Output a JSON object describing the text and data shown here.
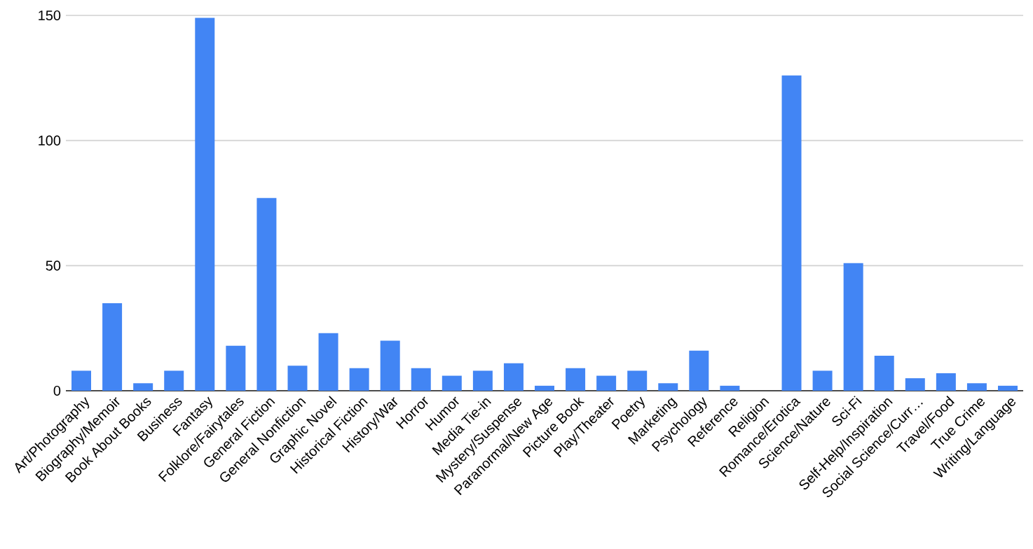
{
  "chart_data": {
    "type": "bar",
    "categories": [
      "Art/Photography",
      "Biography/Memoir",
      "Book About Books",
      "Business",
      "Fantasy",
      "Folklore/Fairytales",
      "General Fiction",
      "General Nonfiction",
      "Graphic Novel",
      "Historical Fiction",
      "History/War",
      "Horror",
      "Humor",
      "Media Tie-in",
      "Mystery/Suspense",
      "Paranormal/New Age",
      "Picture Book",
      "Play/Theater",
      "Poetry",
      "Marketing",
      "Psychology",
      "Reference",
      "Religion",
      "Romance/Erotica",
      "Science/Nature",
      "Sci-Fi",
      "Self-Help/Inspiration",
      "Social Science/Curr…",
      "Travel/Food",
      "True Crime",
      "Writing/Language"
    ],
    "values": [
      8,
      35,
      3,
      8,
      149,
      18,
      77,
      10,
      23,
      9,
      20,
      9,
      6,
      8,
      11,
      2,
      9,
      6,
      8,
      3,
      16,
      2,
      0,
      126,
      8,
      51,
      14,
      5,
      7,
      3,
      2
    ],
    "color": "#4285f4",
    "ylim": [
      0,
      150
    ],
    "yticks": [
      0,
      50,
      100,
      150
    ],
    "grid": "y"
  }
}
